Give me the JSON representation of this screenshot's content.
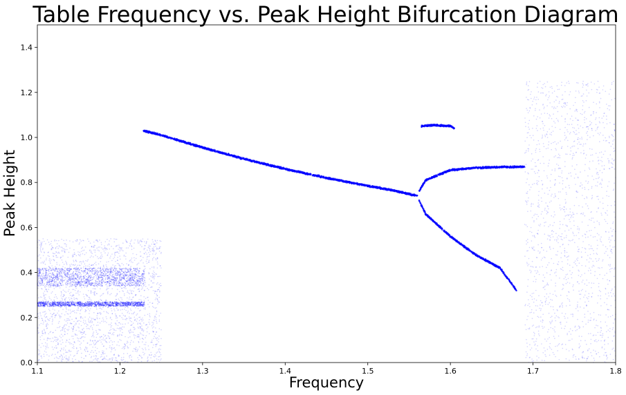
{
  "chart_data": {
    "type": "scatter",
    "title": "Table Frequency vs. Peak Height Bifurcation Diagram",
    "xlabel": "Frequency",
    "ylabel": "Peak Height",
    "xlim": [
      1.1,
      1.8
    ],
    "ylim": [
      0.0,
      1.5
    ],
    "xticks": [
      "1.1",
      "1.2",
      "1.3",
      "1.4",
      "1.5",
      "1.6",
      "1.7",
      "1.8"
    ],
    "yticks": [
      "0.0",
      "0.2",
      "0.4",
      "0.6",
      "0.8",
      "1.0",
      "1.2",
      "1.4"
    ],
    "grid": false,
    "legend": "none",
    "marker_color": "#0000ff",
    "marker_alpha": 0.2,
    "regions": [
      {
        "name": "chaotic band low frequency",
        "x": [
          1.1,
          1.25
        ],
        "y": [
          0.0,
          0.55
        ],
        "kind": "scatter-cloud"
      },
      {
        "name": "low frequency band near 0.38",
        "x": [
          1.1,
          1.23
        ],
        "y": [
          0.34,
          0.42
        ],
        "kind": "dense-band"
      },
      {
        "name": "low frequency line near 0.26",
        "x": [
          1.1,
          1.23
        ],
        "y": [
          0.25,
          0.27
        ],
        "kind": "dense-band"
      },
      {
        "name": "chaotic band high frequency",
        "x": [
          1.69,
          1.8
        ],
        "y": [
          0.0,
          1.25
        ],
        "kind": "scatter-cloud"
      }
    ],
    "branches": [
      {
        "name": "period-1 branch",
        "points": [
          [
            1.228,
            1.03
          ],
          [
            1.25,
            1.01
          ],
          [
            1.3,
            0.955
          ],
          [
            1.35,
            0.905
          ],
          [
            1.4,
            0.86
          ],
          [
            1.45,
            0.82
          ],
          [
            1.5,
            0.785
          ],
          [
            1.53,
            0.765
          ],
          [
            1.56,
            0.74
          ]
        ]
      },
      {
        "name": "upper period-2 branch",
        "points": [
          [
            1.562,
            0.76
          ],
          [
            1.57,
            0.81
          ],
          [
            1.6,
            0.855
          ],
          [
            1.63,
            0.865
          ],
          [
            1.66,
            0.868
          ],
          [
            1.69,
            0.87
          ]
        ]
      },
      {
        "name": "lower period-2 branch",
        "points": [
          [
            1.562,
            0.72
          ],
          [
            1.57,
            0.66
          ],
          [
            1.6,
            0.56
          ],
          [
            1.63,
            0.48
          ],
          [
            1.66,
            0.42
          ],
          [
            1.68,
            0.32
          ]
        ]
      },
      {
        "name": "isolated branch near 1.05",
        "points": [
          [
            1.565,
            1.05
          ],
          [
            1.58,
            1.055
          ],
          [
            1.6,
            1.05
          ],
          [
            1.605,
            1.04
          ]
        ]
      }
    ]
  }
}
